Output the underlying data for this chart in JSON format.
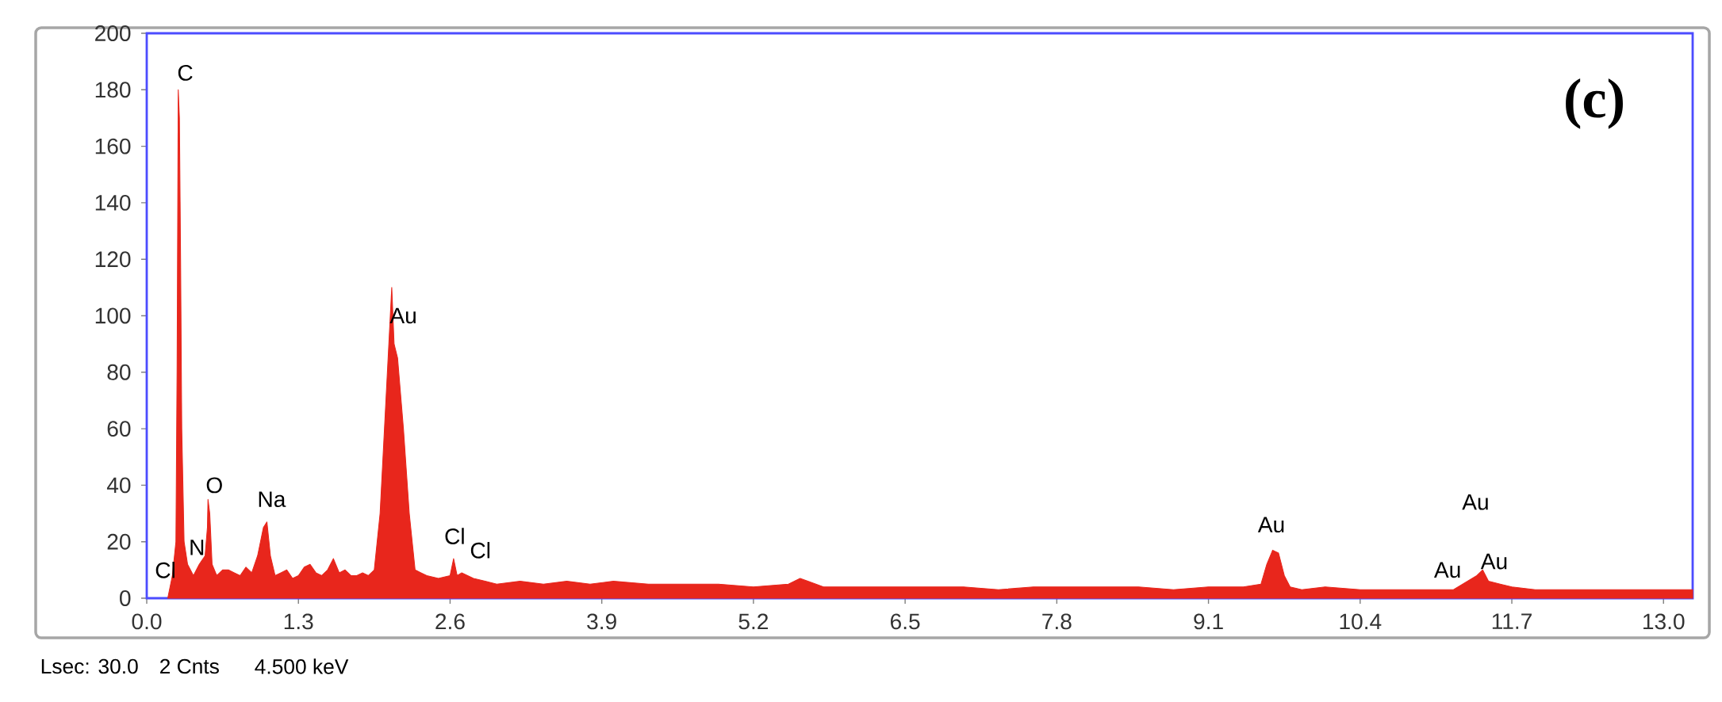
{
  "chart_data": {
    "type": "area",
    "color": "#e8261c",
    "x": [
      0.18,
      0.22,
      0.25,
      0.26,
      0.27,
      0.28,
      0.29,
      0.3,
      0.32,
      0.35,
      0.4,
      0.45,
      0.5,
      0.52,
      0.525,
      0.54,
      0.56,
      0.6,
      0.65,
      0.7,
      0.75,
      0.8,
      0.85,
      0.9,
      0.95,
      1.0,
      1.03,
      1.06,
      1.1,
      1.15,
      1.2,
      1.25,
      1.3,
      1.35,
      1.4,
      1.45,
      1.5,
      1.55,
      1.6,
      1.65,
      1.7,
      1.75,
      1.8,
      1.85,
      1.9,
      1.95,
      2.0,
      2.05,
      2.1,
      2.12,
      2.15,
      2.2,
      2.25,
      2.3,
      2.35,
      2.4,
      2.5,
      2.6,
      2.63,
      2.66,
      2.7,
      2.8,
      2.9,
      3.0,
      3.2,
      3.4,
      3.6,
      3.8,
      4.0,
      4.3,
      4.6,
      4.9,
      5.2,
      5.5,
      5.6,
      5.8,
      6.1,
      6.4,
      6.7,
      7.0,
      7.3,
      7.6,
      7.9,
      8.2,
      8.5,
      8.8,
      9.1,
      9.4,
      9.55,
      9.6,
      9.65,
      9.7,
      9.75,
      9.8,
      9.9,
      10.1,
      10.4,
      10.7,
      11.0,
      11.2,
      11.4,
      11.45,
      11.5,
      11.6,
      11.7,
      11.9,
      12.2,
      12.5,
      12.8,
      13.1,
      13.25
    ],
    "values": [
      0,
      8,
      20,
      80,
      180,
      170,
      120,
      60,
      20,
      12,
      8,
      12,
      15,
      25,
      35,
      30,
      12,
      8,
      10,
      10,
      9,
      8,
      11,
      9,
      15,
      25,
      27,
      15,
      8,
      9,
      10,
      7,
      8,
      11,
      12,
      9,
      8,
      10,
      14,
      9,
      10,
      8,
      8,
      9,
      8,
      10,
      30,
      70,
      110,
      90,
      85,
      60,
      30,
      10,
      9,
      8,
      7,
      8,
      14,
      8,
      9,
      7,
      6,
      5,
      6,
      5,
      6,
      5,
      6,
      5,
      5,
      5,
      4,
      5,
      7,
      4,
      4,
      4,
      4,
      4,
      3,
      4,
      4,
      4,
      4,
      3,
      4,
      4,
      5,
      12,
      17,
      16,
      8,
      4,
      3,
      4,
      3,
      3,
      3,
      3,
      8,
      10,
      6,
      5,
      4,
      3,
      3,
      3,
      3,
      3,
      3
    ],
    "xlim": [
      0,
      13.25
    ],
    "xticks": [
      {
        "value": 0,
        "label": "0.0"
      },
      1.3,
      2.6,
      3.9,
      5.2,
      6.5,
      7.8,
      9.1,
      10.4,
      11.7,
      {
        "value": 13,
        "label": "13.0"
      }
    ],
    "ylim": [
      0,
      200
    ],
    "yticks": [
      0,
      20,
      40,
      60,
      80,
      100,
      120,
      140,
      160,
      180,
      200
    ],
    "annotations": [
      "C",
      "Cl",
      "N",
      "O",
      "Na",
      "Au",
      "Cl",
      "Cl",
      "Au",
      "Au",
      "Au",
      "Au",
      "(c)",
      "Lsec: 30.0",
      "2 Cnts",
      "4.500 keV"
    ]
  }
}
